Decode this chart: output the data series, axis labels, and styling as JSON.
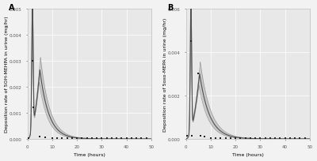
{
  "panel_A_label": "A",
  "panel_B_label": "B",
  "ylabel_A": "Deposition rate of 5OH-MEHPA in urine (mg/hr)",
  "ylabel_B": "Deposition rate of 5oxo-MEPA in urine (mg/hr)",
  "xlabel": "Time (hours)",
  "xlim": [
    0,
    50
  ],
  "ylim_A": [
    0,
    0.005
  ],
  "ylim_B": [
    0,
    0.006
  ],
  "yticks_A": [
    0.0,
    0.001,
    0.002,
    0.003,
    0.004,
    0.005
  ],
  "ytick_labels_A": [
    "0.000",
    "0.001",
    "0.002",
    "0.003",
    "0.004",
    "0.005"
  ],
  "yticks_B": [
    0.0,
    0.002,
    0.004,
    0.006
  ],
  "ytick_labels_B": [
    "0.000",
    "0.002",
    "0.004",
    "0.006"
  ],
  "xticks": [
    0,
    10,
    20,
    30,
    40,
    50
  ],
  "bg_color": "#e8e8e8",
  "line_color": "#808080",
  "band_color": "#b0b0b0",
  "point_color": "#222222",
  "grid_color": "#ffffff",
  "spike_time": 2.0,
  "peak_time_A": 5.0,
  "peak_val_A": 0.00265,
  "spike_val_A": 0.00485,
  "decay_A": 0.28,
  "peak_time_B": 5.5,
  "peak_val_B": 0.003,
  "spike_val_B": 0.0058,
  "decay_B": 0.25,
  "data_points_A_x": [
    0.5,
    2.0,
    2.5,
    5.0,
    7.0,
    10.0,
    12.0,
    14.0,
    16.0,
    18.0,
    20.0,
    22.0,
    24.0,
    26.0,
    28.0,
    30.0,
    32.0,
    34.0,
    36.0,
    38.0,
    40.0,
    42.0,
    44.0,
    46.0,
    48.0
  ],
  "data_points_A_y": [
    2e-05,
    0.003,
    0.0012,
    0.0001,
    5e-05,
    4e-05,
    3e-05,
    3e-05,
    3e-05,
    3e-05,
    3e-05,
    3e-05,
    3e-05,
    3e-05,
    3e-05,
    3e-05,
    3e-05,
    3e-05,
    3e-05,
    3e-05,
    3e-05,
    3e-05,
    3e-05,
    3e-05,
    3e-05
  ],
  "data_points_B_x": [
    0.5,
    2.0,
    2.5,
    5.0,
    6.0,
    7.5,
    10.0,
    12.0,
    14.0,
    16.0,
    18.0,
    20.0,
    22.0,
    24.0,
    26.0,
    28.0,
    30.0,
    32.0,
    34.0,
    36.0,
    38.0,
    40.0,
    42.0,
    44.0,
    46.0,
    48.0
  ],
  "data_points_B_y": [
    0.00015,
    0.0045,
    0.00015,
    0.003,
    0.00015,
    0.0001,
    5e-05,
    4e-05,
    3e-05,
    3e-05,
    3e-05,
    3e-05,
    3e-05,
    3e-05,
    3e-05,
    3e-05,
    3e-05,
    3e-05,
    3e-05,
    3e-05,
    3e-05,
    3e-05,
    3e-05,
    3e-05,
    3e-05,
    3e-05
  ],
  "fontsize_label": 4.5,
  "fontsize_tick": 4.0,
  "fontsize_panel": 7
}
